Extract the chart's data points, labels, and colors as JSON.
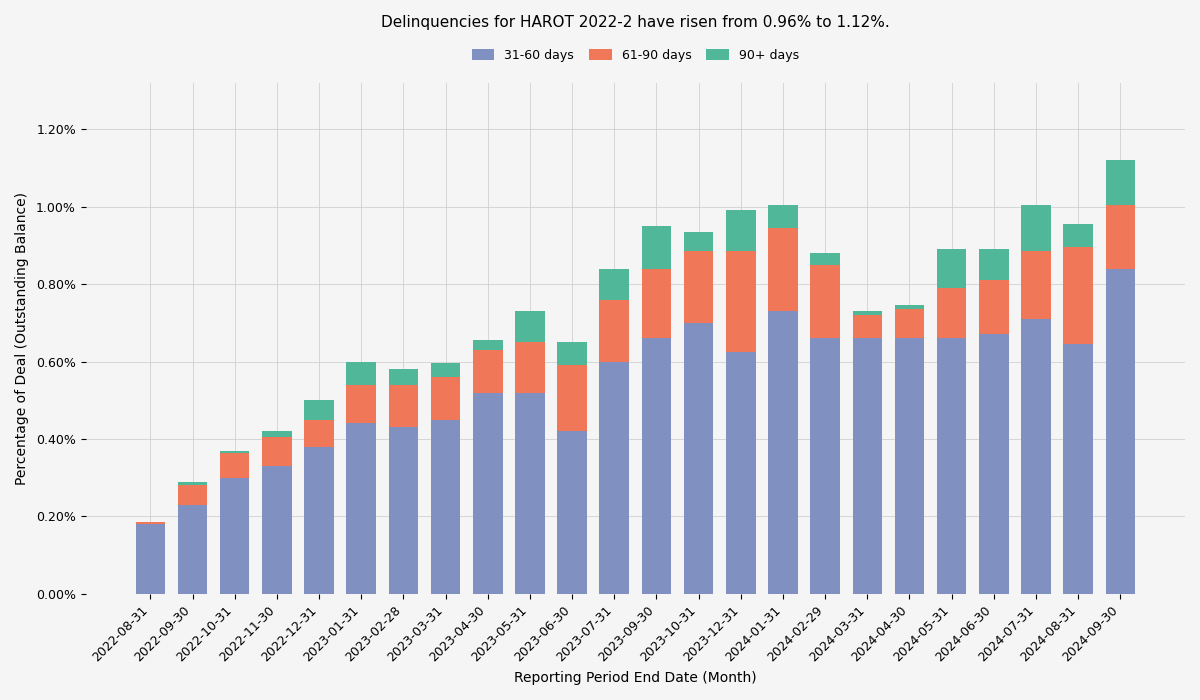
{
  "title": "Delinquencies for HAROT 2022-2 have risen from 0.96% to 1.12%.",
  "xlabel": "Reporting Period End Date (Month)",
  "ylabel": "Percentage of Deal (Outstanding Balance)",
  "categories": [
    "2022-08-31",
    "2022-09-30",
    "2022-10-31",
    "2022-11-30",
    "2022-12-31",
    "2023-01-31",
    "2023-02-28",
    "2023-03-31",
    "2023-04-30",
    "2023-05-31",
    "2023-06-30",
    "2023-07-31",
    "2023-09-30",
    "2023-10-31",
    "2023-12-31",
    "2024-01-31",
    "2024-02-29",
    "2024-03-31",
    "2024-04-30",
    "2024-05-31",
    "2024-06-30",
    "2024-07-31",
    "2024-08-31",
    "2024-09-30"
  ],
  "days_31_60": [
    0.0018,
    0.0023,
    0.003,
    0.0033,
    0.0038,
    0.0044,
    0.0043,
    0.0045,
    0.0052,
    0.0052,
    0.0042,
    0.006,
    0.0066,
    0.007,
    0.00625,
    0.0073,
    0.0066,
    0.0066,
    0.0066,
    0.0066,
    0.0067,
    0.0071,
    0.00645,
    0.0084
  ],
  "days_61_90": [
    5e-05,
    0.0005,
    0.00065,
    0.00075,
    0.0007,
    0.001,
    0.0011,
    0.0011,
    0.0011,
    0.0013,
    0.0017,
    0.0016,
    0.0018,
    0.00185,
    0.0026,
    0.00215,
    0.0019,
    0.0006,
    0.00075,
    0.0013,
    0.0014,
    0.00175,
    0.0025,
    0.00165
  ],
  "days_90plus": [
    0.0,
    0.0001,
    5e-05,
    0.00015,
    0.0005,
    0.0006,
    0.0004,
    0.00035,
    0.00025,
    0.0008,
    0.0006,
    0.0008,
    0.0011,
    0.0005,
    0.00105,
    0.0006,
    0.0003,
    0.0001,
    0.0001,
    0.001,
    0.0008,
    0.0012,
    0.0006,
    0.00115
  ],
  "color_31_60": "#8090C0",
  "color_61_90": "#F07858",
  "color_90plus": "#50B898",
  "legend_labels": [
    "31-60 days",
    "61-90 days",
    "90+ days"
  ],
  "bg_color": "#F5F5F5",
  "grid_color": "#D0D0D0",
  "title_fontsize": 11,
  "label_fontsize": 10,
  "tick_fontsize": 9
}
